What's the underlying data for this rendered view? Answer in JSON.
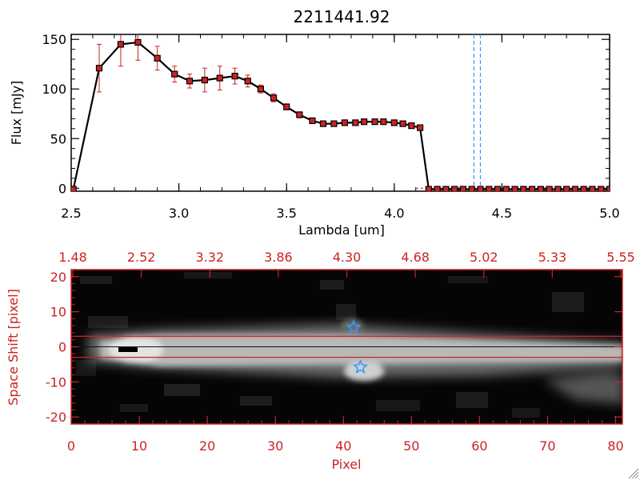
{
  "colors": {
    "axis": "#000000",
    "red": "#cc2222",
    "blue": "#3399ff",
    "marker": "#cc2222"
  },
  "chart_data": [
    {
      "type": "line",
      "title": "2211441.92",
      "xlabel": "Lambda [um]",
      "ylabel": "Flux [mJy]",
      "xlim": [
        2.5,
        5.0
      ],
      "ylim": [
        -3,
        155
      ],
      "xticks": [
        "2.5",
        "3.0",
        "3.5",
        "4.0",
        "4.5",
        "5.0"
      ],
      "yticks": [
        "0",
        "50",
        "100",
        "150"
      ],
      "vlines": [
        4.37,
        4.4
      ],
      "x": [
        2.51,
        2.63,
        2.73,
        2.81,
        2.9,
        2.98,
        3.05,
        3.12,
        3.19,
        3.26,
        3.32,
        3.38,
        3.44,
        3.5,
        3.56,
        3.62,
        3.67,
        3.72,
        3.77,
        3.82,
        3.86,
        3.91,
        3.95,
        4.0,
        4.04,
        4.08,
        4.12,
        4.16,
        4.2,
        4.24,
        4.28,
        4.32,
        4.36,
        4.4,
        4.44,
        4.48,
        4.52,
        4.56,
        4.6,
        4.64,
        4.68,
        4.72,
        4.76,
        4.8,
        4.84,
        4.88,
        4.92,
        4.96,
        5.0
      ],
      "y": [
        -1,
        121,
        145,
        147,
        131,
        115,
        108,
        109,
        111,
        113,
        108,
        100,
        91,
        82,
        74,
        68,
        65,
        65,
        66,
        66,
        67,
        67,
        67,
        66,
        65,
        63,
        61,
        -1,
        -1,
        -1,
        -1,
        -1,
        -1,
        -1,
        -1,
        -1,
        -1,
        -1,
        -1,
        -1,
        -1,
        -1,
        -1,
        -1,
        -1,
        -1,
        -1,
        -1,
        -1
      ],
      "yerr": [
        0,
        24,
        22,
        18,
        12,
        8,
        7,
        12,
        12,
        8,
        6,
        4,
        4,
        3,
        3,
        2,
        2,
        2,
        2,
        2,
        2,
        2,
        2,
        2,
        2,
        2,
        2,
        0,
        0,
        0,
        0,
        0,
        0,
        0,
        0,
        0,
        0,
        0,
        0,
        0,
        0,
        0,
        0,
        0,
        0,
        0,
        0,
        0,
        0
      ]
    },
    {
      "type": "heatmap",
      "xlabel": "Pixel",
      "ylabel": "Space Shift [pixel]",
      "xlim": [
        0,
        81
      ],
      "ylim": [
        -22,
        22
      ],
      "xticks": [
        "0",
        "10",
        "20",
        "30",
        "40",
        "50",
        "60",
        "70",
        "80"
      ],
      "yticks": [
        "20",
        "10",
        "0",
        "-10",
        "-20"
      ],
      "top_axis_ticks": [
        "1.48",
        "2.52",
        "3.32",
        "3.86",
        "4.30",
        "4.68",
        "5.02",
        "5.33",
        "5.55"
      ],
      "stars": [
        {
          "x": 41.5,
          "y": 5.5
        },
        {
          "x": 42.5,
          "y": -5.8
        }
      ],
      "hlines": [
        3,
        -3
      ]
    }
  ]
}
